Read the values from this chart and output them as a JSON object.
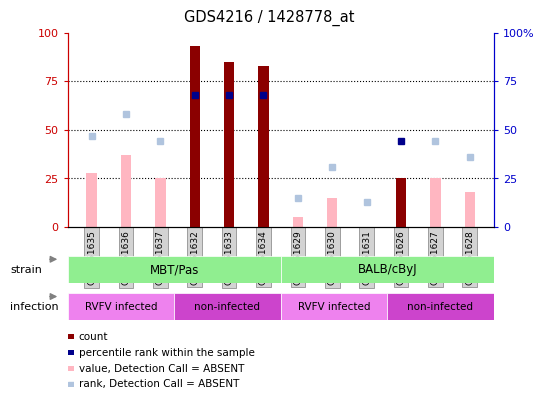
{
  "title": "GDS4216 / 1428778_at",
  "samples": [
    "GSM451635",
    "GSM451636",
    "GSM451637",
    "GSM451632",
    "GSM451633",
    "GSM451634",
    "GSM451629",
    "GSM451630",
    "GSM451631",
    "GSM451626",
    "GSM451627",
    "GSM451628"
  ],
  "count_values": [
    null,
    null,
    null,
    93,
    85,
    83,
    null,
    null,
    null,
    25,
    null,
    null
  ],
  "value_absent": [
    28,
    37,
    25,
    null,
    null,
    null,
    5,
    15,
    null,
    null,
    25,
    18
  ],
  "rank_absent": [
    47,
    58,
    44,
    null,
    null,
    null,
    15,
    31,
    13,
    null,
    44,
    36
  ],
  "percentile_rank": [
    null,
    null,
    null,
    68,
    68,
    68,
    null,
    null,
    null,
    44,
    null,
    null
  ],
  "ylim": [
    0,
    100
  ],
  "bar_color_count": "#8b0000",
  "bar_color_absent": "#ffb6c1",
  "dot_color_rank_absent": "#b0c4de",
  "dot_color_percentile": "#00008b",
  "left_axis_color": "#cc0000",
  "right_axis_color": "#0000cc",
  "strain_labels": [
    "MBT/Pas",
    "BALB/cByJ"
  ],
  "strain_ranges": [
    [
      0,
      6
    ],
    [
      6,
      12
    ]
  ],
  "strain_color": "#90ee90",
  "infection_labels": [
    "RVFV infected",
    "non-infected",
    "RVFV infected",
    "non-infected"
  ],
  "infection_ranges": [
    [
      0,
      3
    ],
    [
      3,
      6
    ],
    [
      6,
      9
    ],
    [
      9,
      12
    ]
  ],
  "infection_colors": [
    "#ee82ee",
    "#cc44cc",
    "#ee82ee",
    "#cc44cc"
  ],
  "legend_items": [
    {
      "label": "count",
      "color": "#8b0000"
    },
    {
      "label": "percentile rank within the sample",
      "color": "#00008b"
    },
    {
      "label": "value, Detection Call = ABSENT",
      "color": "#ffb6c1"
    },
    {
      "label": "rank, Detection Call = ABSENT",
      "color": "#b0c4de"
    }
  ]
}
